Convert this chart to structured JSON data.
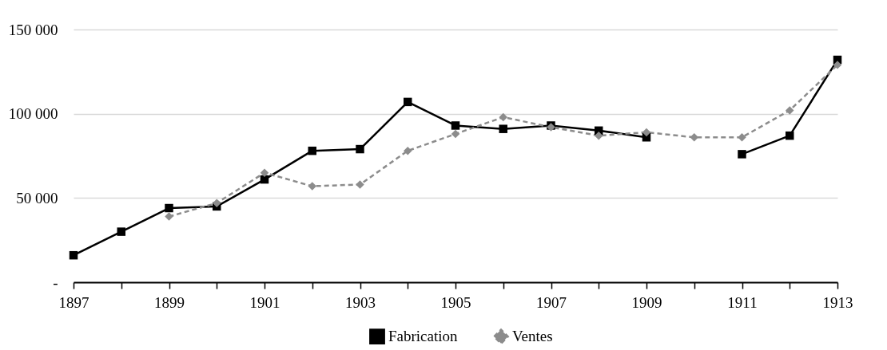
{
  "chart_data": {
    "type": "line",
    "x": [
      1897,
      1898,
      1899,
      1900,
      1901,
      1902,
      1903,
      1904,
      1905,
      1906,
      1907,
      1908,
      1909,
      1910,
      1911,
      1912,
      1913
    ],
    "series": [
      {
        "name": "Fabrication",
        "color": "#000000",
        "marker": "square",
        "line_style": "solid",
        "values": [
          16000,
          30000,
          44000,
          45000,
          61000,
          78000,
          79000,
          107000,
          93000,
          91000,
          93000,
          90000,
          86000,
          null,
          76000,
          87000,
          132000
        ]
      },
      {
        "name": "Ventes",
        "color": "#8c8c8c",
        "marker": "diamond",
        "line_style": "dashed",
        "values": [
          null,
          null,
          39000,
          47000,
          65000,
          57000,
          58000,
          78000,
          88000,
          98000,
          92000,
          87000,
          89000,
          86000,
          86000,
          102000,
          129000
        ]
      }
    ],
    "xlim": [
      1897,
      1913
    ],
    "xticks": [
      1897,
      {
        "value": 1898,
        "label": null
      },
      1899,
      {
        "value": 1900,
        "label": null
      },
      1901,
      {
        "value": 1902,
        "label": null
      },
      1903,
      {
        "value": 1904,
        "label": null
      },
      1905,
      {
        "value": 1906,
        "label": null
      },
      1907,
      {
        "value": 1908,
        "label": null
      },
      1909,
      {
        "value": 1910,
        "label": null
      },
      1911,
      {
        "value": 1912,
        "label": null
      },
      1913
    ],
    "ylim": [
      0,
      150000
    ],
    "yticks": [
      {
        "value": 0,
        "label": "-"
      },
      {
        "value": 50000,
        "label": "50 000"
      },
      {
        "value": 100000,
        "label": "100 000"
      },
      {
        "value": 150000,
        "label": "150 000"
      }
    ],
    "grid": "y",
    "legend": "bottom"
  }
}
